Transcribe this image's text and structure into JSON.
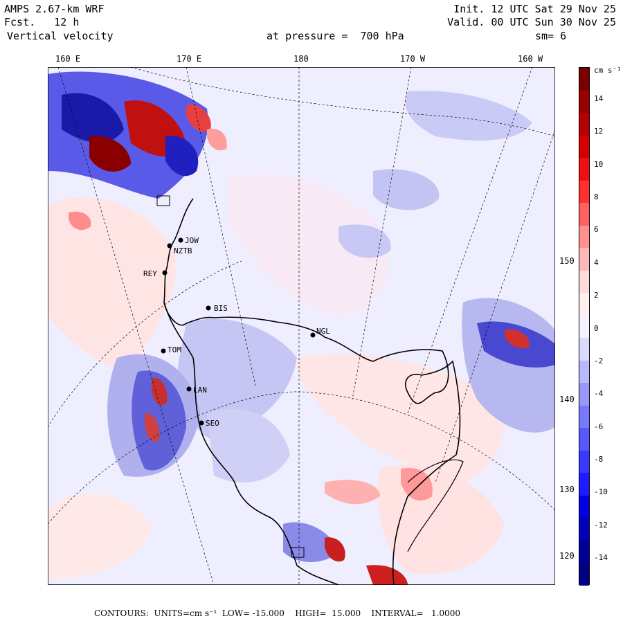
{
  "header": {
    "model": "AMPS 2.67-km WRF",
    "forecast": "Fcst.   12 h",
    "field": "Vertical velocity",
    "init": "Init. 12 UTC Sat 29 Nov 25",
    "valid": "Valid. 00 UTC Sun 30 Nov 25",
    "pressure": "at pressure =  700 hPa",
    "smoothing": "sm= 6"
  },
  "lon_labels": [
    "160 E",
    "170 E",
    "180",
    "170 W",
    "160 W"
  ],
  "lat_labels": [
    "150 W",
    "140 W",
    "130 W",
    "120 W"
  ],
  "stations": [
    "NZTB",
    "JOW",
    "REY",
    "BIS",
    "NGL",
    "TOM",
    "LAN",
    "SEO"
  ],
  "colorbar": {
    "units": "cm s⁻¹",
    "ticks": [
      "14",
      "12",
      "10",
      "8",
      "6",
      "4",
      "2",
      "0",
      "-2",
      "-4",
      "-6",
      "-8",
      "-10",
      "-12",
      "-14"
    ],
    "colors": [
      "#7a0000",
      "#9a0000",
      "#b80000",
      "#d40000",
      "#ee1010",
      "#ff3030",
      "#ff6060",
      "#ff9090",
      "#ffb8b8",
      "#ffdada",
      "#ffefef",
      "#f2f2ff",
      "#dadaff",
      "#b8b8ff",
      "#9898ff",
      "#7878ff",
      "#5858ff",
      "#3838ff",
      "#1c1cff",
      "#0000e0",
      "#0000b8",
      "#000098",
      "#000080"
    ]
  },
  "footer": {
    "contours": "CONTOURS:  UNITS=cm s⁻¹  LOW= -15.000    HIGH=  15.000    INTERVAL=   1.0000"
  }
}
